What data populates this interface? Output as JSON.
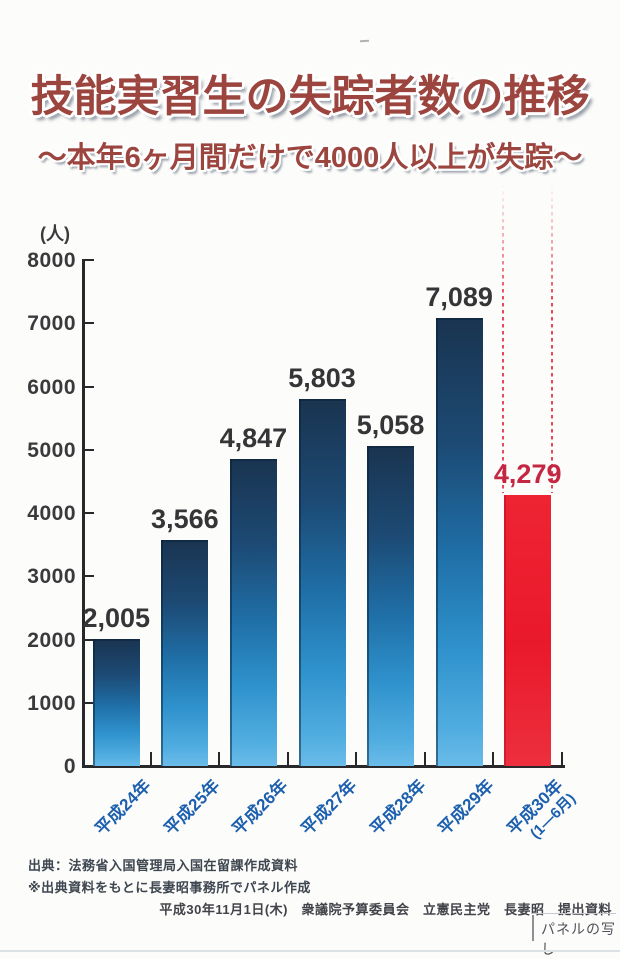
{
  "header": {
    "title": "技能実習生の失踪者数の推移",
    "subtitle": "～本年6ヶ月間だけで4000人以上が失踪～"
  },
  "chart_data": {
    "type": "bar",
    "title": "技能実習生の失踪者数の推移",
    "unit_label": "(人)",
    "categories": [
      "平成24年",
      "平成25年",
      "平成26年",
      "平成27年",
      "平成28年",
      "平成29年",
      "平成30年"
    ],
    "category_sublabels": [
      "",
      "",
      "",
      "",
      "",
      "",
      "(1―6月)"
    ],
    "values": [
      2005,
      3566,
      4847,
      5803,
      5058,
      7089,
      4279
    ],
    "value_labels": [
      "2,005",
      "3,566",
      "4,847",
      "5,803",
      "5,058",
      "7,089",
      "4,279"
    ],
    "highlight_index": 6,
    "ylim": [
      0,
      8000
    ],
    "ytick_interval": 1000,
    "ytick_labels": [
      "8000",
      "7000",
      "6000",
      "5000",
      "4000",
      "3000",
      "2000",
      "1000",
      "0"
    ],
    "grid": false,
    "legend": null,
    "colors": {
      "bar_gradient_top": "#1a3450",
      "bar_gradient_bottom": "#6abce9",
      "highlight_bar": "#e9192b",
      "value_label": "#353537",
      "highlight_value_label": "#c32742",
      "category_label": "#1b5fae",
      "axis": "#28282a",
      "title": "#9c453f"
    }
  },
  "footer": {
    "source_line1": "出典：法務省入国管理局入国在留課作成資料",
    "source_line2": "※出典資料をもとに長妻昭事務所でパネル作成",
    "credit_line": "平成30年11月1日(木)　衆議院予算委員会　立憲民主党　長妻昭　提出資料",
    "panel_note": "パネルの写し"
  }
}
